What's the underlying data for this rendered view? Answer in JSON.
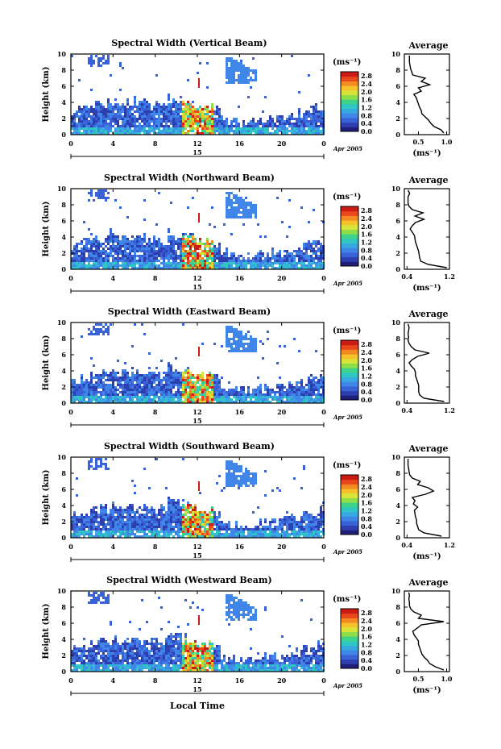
{
  "chart_data": [
    {
      "type": "heatmap",
      "title": "Spectral Width (Vertical Beam)",
      "ylabel": "Height (km)",
      "xticks": [
        "0",
        "4",
        "8",
        "12",
        "16",
        "20",
        "0"
      ],
      "yticks": [
        "0",
        "2",
        "4",
        "6",
        "8",
        "10"
      ],
      "date_day": "15",
      "date_month": "Apr 2005",
      "colorbar": {
        "unit": "(ms⁻¹)",
        "ticks": [
          "0.0",
          "0.4",
          "0.8",
          "1.2",
          "1.6",
          "2.0",
          "2.4",
          "2.8"
        ]
      },
      "profile": {
        "title": "Average",
        "xlabel": "(ms⁻¹)",
        "xticks": [
          "0.5",
          "1.0"
        ],
        "xlim": [
          0.25,
          1.05
        ],
        "yticks": [
          "0",
          "2",
          "4",
          "6",
          "8",
          "10"
        ],
        "heights": [
          0.2,
          0.6,
          1.0,
          1.4,
          1.8,
          2.2,
          2.6,
          3.0,
          3.4,
          3.8,
          4.2,
          4.6,
          5.0,
          5.4,
          5.8,
          6.2,
          6.6,
          7.0,
          7.4,
          7.8,
          8.2,
          8.6,
          9.0,
          9.4,
          9.8
        ],
        "values": [
          0.95,
          0.9,
          0.78,
          0.72,
          0.68,
          0.62,
          0.56,
          0.55,
          0.52,
          0.5,
          0.48,
          0.46,
          0.42,
          0.55,
          0.5,
          0.7,
          0.55,
          0.62,
          0.4,
          0.38,
          0.36,
          0.35,
          0.34,
          0.34,
          0.34
        ]
      }
    },
    {
      "type": "heatmap",
      "title": "Spectral Width (Northward Beam)",
      "ylabel": "Height (km)",
      "xticks": [
        "0",
        "4",
        "8",
        "12",
        "16",
        "20",
        "0"
      ],
      "yticks": [
        "0",
        "2",
        "4",
        "6",
        "8",
        "10"
      ],
      "date_day": "15",
      "date_month": "Apr 2005",
      "colorbar": {
        "unit": "(ms⁻¹)",
        "ticks": [
          "0.0",
          "0.4",
          "0.8",
          "1.2",
          "1.6",
          "2.0",
          "2.4",
          "2.8"
        ]
      },
      "profile": {
        "title": "Average",
        "xlabel": "(ms⁻¹)",
        "xticks": [
          "0.4",
          "1.2"
        ],
        "xlim": [
          0.35,
          1.2
        ],
        "yticks": [
          "0",
          "2",
          "4",
          "6",
          "8",
          "10"
        ],
        "heights": [
          0.2,
          0.6,
          1.0,
          1.4,
          1.8,
          2.2,
          2.6,
          3.0,
          3.4,
          3.8,
          4.2,
          4.6,
          5.0,
          5.4,
          5.8,
          6.2,
          6.6,
          7.0,
          7.4,
          7.8,
          8.2,
          8.6,
          9.0,
          9.4,
          9.8
        ],
        "values": [
          1.15,
          0.8,
          0.66,
          0.64,
          0.63,
          0.62,
          0.6,
          0.58,
          0.56,
          0.55,
          0.54,
          0.5,
          0.46,
          0.5,
          0.56,
          0.72,
          0.55,
          0.7,
          0.5,
          0.44,
          0.42,
          0.42,
          0.42,
          0.45,
          0.42
        ]
      }
    },
    {
      "type": "heatmap",
      "title": "Spectral Width (Eastward Beam)",
      "ylabel": "Height (km)",
      "xticks": [
        "0",
        "4",
        "8",
        "12",
        "16",
        "20",
        "0"
      ],
      "yticks": [
        "0",
        "2",
        "4",
        "6",
        "8",
        "10"
      ],
      "date_day": "15",
      "date_month": "Apr 2005",
      "colorbar": {
        "unit": "(ms⁻¹)",
        "ticks": [
          "0.0",
          "0.4",
          "0.8",
          "1.2",
          "1.6",
          "2.0",
          "2.4",
          "2.8"
        ]
      },
      "profile": {
        "title": "Average",
        "xlabel": "",
        "xticks": [
          "0.4",
          "1.2"
        ],
        "xlim": [
          0.35,
          1.2
        ],
        "yticks": [
          "0",
          "2",
          "4",
          "6",
          "8",
          "10"
        ],
        "heights": [
          0.2,
          0.6,
          1.0,
          1.4,
          1.8,
          2.2,
          2.6,
          3.0,
          3.4,
          3.8,
          4.2,
          4.6,
          5.0,
          5.4,
          5.8,
          6.2,
          6.6,
          7.0,
          7.4,
          7.8,
          8.2,
          8.6,
          9.0,
          9.4,
          9.8
        ],
        "values": [
          1.1,
          0.72,
          0.64,
          0.62,
          0.62,
          0.62,
          0.6,
          0.58,
          0.56,
          0.56,
          0.54,
          0.48,
          0.44,
          0.5,
          0.6,
          0.82,
          0.55,
          0.48,
          0.44,
          0.42,
          0.43,
          0.42,
          0.43,
          0.44,
          0.42
        ]
      }
    },
    {
      "type": "heatmap",
      "title": "Spectral Width (Southward Beam)",
      "ylabel": "Height (km)",
      "xticks": [
        "0",
        "4",
        "8",
        "12",
        "16",
        "20",
        "0"
      ],
      "yticks": [
        "0",
        "2",
        "4",
        "6",
        "8",
        "10"
      ],
      "date_day": "15",
      "date_month": "Apr 2005",
      "colorbar": {
        "unit": "(ms⁻¹)",
        "ticks": [
          "0.0",
          "0.4",
          "0.8",
          "1.2",
          "1.6",
          "2.0",
          "2.4",
          "2.8"
        ]
      },
      "profile": {
        "title": "Average",
        "xlabel": "(ms⁻¹)",
        "xticks": [
          "0.4",
          "1.2"
        ],
        "xlim": [
          0.35,
          1.2
        ],
        "yticks": [
          "0",
          "2",
          "4",
          "6",
          "8",
          "10"
        ],
        "heights": [
          0.2,
          0.6,
          1.0,
          1.4,
          1.8,
          2.2,
          2.6,
          3.0,
          3.4,
          3.8,
          4.2,
          4.6,
          5.0,
          5.4,
          5.8,
          6.2,
          6.6,
          7.0,
          7.4,
          7.8,
          8.2,
          8.6,
          9.0,
          9.4,
          9.8
        ],
        "values": [
          1.05,
          0.72,
          0.62,
          0.6,
          0.58,
          0.58,
          0.56,
          0.55,
          0.54,
          0.6,
          0.52,
          0.55,
          0.5,
          0.75,
          0.9,
          0.8,
          0.6,
          0.65,
          0.5,
          0.45,
          0.44,
          0.43,
          0.42,
          0.42,
          0.42
        ]
      }
    },
    {
      "type": "heatmap",
      "title": "Spectral Width (Westward Beam)",
      "ylabel": "Height (km)",
      "xticks": [
        "0",
        "4",
        "8",
        "12",
        "16",
        "20",
        "0"
      ],
      "yticks": [
        "0",
        "2",
        "4",
        "6",
        "8",
        "10"
      ],
      "date_day": "15",
      "date_month": "Apr 2005",
      "colorbar": {
        "unit": "(ms⁻¹)",
        "ticks": [
          "0.0",
          "0.4",
          "0.8",
          "1.2",
          "1.6",
          "2.0",
          "2.4",
          "2.8"
        ]
      },
      "profile": {
        "title": "Average",
        "xlabel": "(ms⁻¹)",
        "xticks": [
          "0.5",
          "1.0"
        ],
        "xlim": [
          0.25,
          1.05
        ],
        "yticks": [
          "0",
          "2",
          "4",
          "6",
          "8",
          "10"
        ],
        "heights": [
          0.2,
          0.6,
          1.0,
          1.4,
          1.8,
          2.2,
          2.6,
          3.0,
          3.4,
          3.8,
          4.2,
          4.6,
          5.0,
          5.4,
          5.8,
          6.2,
          6.6,
          7.0,
          7.4,
          7.8,
          8.2,
          8.6,
          9.0,
          9.4,
          9.8
        ],
        "values": [
          0.95,
          0.8,
          0.7,
          0.66,
          0.6,
          0.56,
          0.54,
          0.52,
          0.5,
          0.5,
          0.46,
          0.42,
          0.4,
          0.48,
          0.55,
          0.95,
          0.5,
          0.55,
          0.42,
          0.36,
          0.34,
          0.34,
          0.33,
          0.34,
          0.33
        ]
      }
    }
  ],
  "xlabel_bottom": "Local Time",
  "colors": {
    "scale": [
      "#1f1f7a",
      "#2d3fae",
      "#3a62d8",
      "#3f86e8",
      "#38a8e0",
      "#2fc6c4",
      "#3fd28a",
      "#8ede4a",
      "#d8e43a",
      "#f6c22a",
      "#f38a22",
      "#e8481c",
      "#cc1a14"
    ],
    "frame": "#000000"
  }
}
